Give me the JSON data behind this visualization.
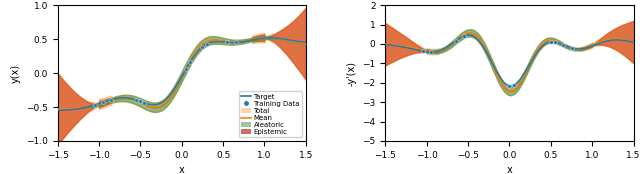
{
  "xlim": [
    -1.5,
    1.5
  ],
  "ylim_left": [
    -1.0,
    1.0
  ],
  "ylim_right": [
    -5.0,
    2.0
  ],
  "xlabel": "x",
  "ylabel_left": "y(x)",
  "ylabel_right": "-y'(x)",
  "target_color": "#1f77b4",
  "mean_color": "#ff7f0e",
  "total_color_fill": "#ff7f0e",
  "aleatoric_color_fill": "#4a9a4a",
  "epistemic_color_fill": "#c0392b",
  "training_data_color": "#1f77b4",
  "total_alpha": 0.35,
  "aleatoric_alpha": 0.55,
  "epistemic_alpha": 0.75,
  "x_train_left": [
    -1.05,
    -0.95,
    -0.85,
    -0.55,
    -0.5,
    -0.45,
    0.05,
    0.1,
    0.25,
    0.3,
    0.55,
    0.65
  ],
  "x_train_right": [
    -1.05,
    -0.95,
    -0.65,
    -0.55,
    0.0,
    0.05,
    0.5,
    0.55,
    0.65,
    0.75
  ]
}
